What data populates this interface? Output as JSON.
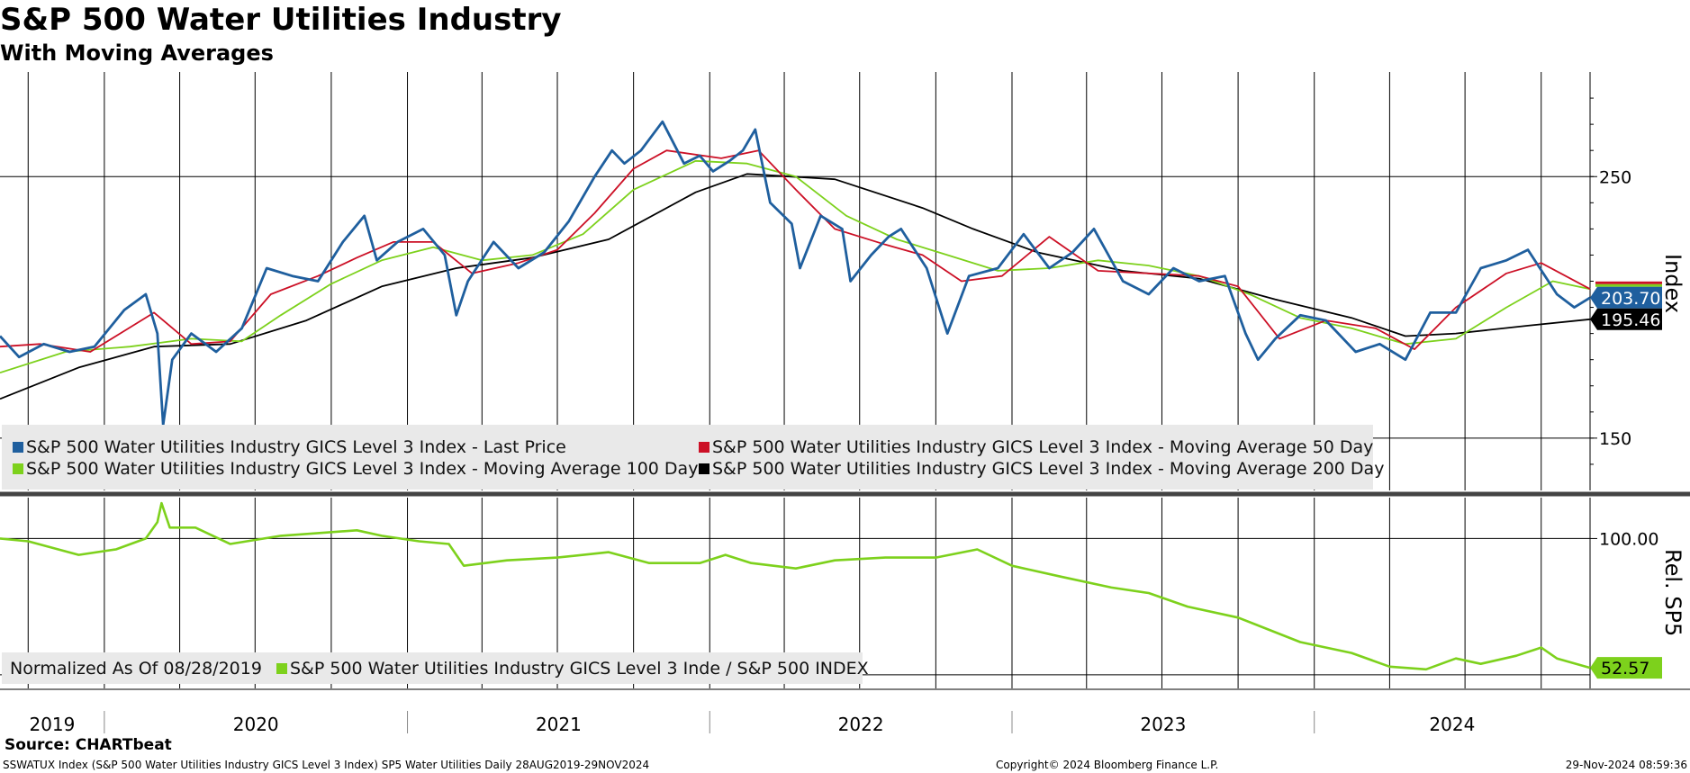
{
  "title": "S&P 500 Water Utilities Industry",
  "subtitle": "With Moving Averages",
  "chart_data": [
    {
      "type": "line",
      "panel": "upper",
      "ylabel": "Index",
      "ylim": [
        130,
        290
      ],
      "yticks": [
        150,
        250
      ],
      "grid": true,
      "legend_position": "bottom-left",
      "last_values": {
        "last_price": "203.70",
        "ma200": "195.46"
      },
      "legend": [
        {
          "key": "last_price",
          "text": "S&P 500 Water Utilities Industry GICS Level 3 Index - Last Price",
          "color": "#1f5f9e"
        },
        {
          "key": "ma50",
          "text": "S&P 500 Water Utilities Industry GICS Level 3 Index - Moving Average 50 Day",
          "color": "#cc1026"
        },
        {
          "key": "ma100",
          "text": "S&P 500 Water Utilities Industry GICS Level 3 Index - Moving Average 100 Day",
          "color": "#7dd11c"
        },
        {
          "key": "ma200",
          "text": "S&P 500 Water Utilities Industry GICS Level 3 Index - Moving Average 200 Day",
          "color": "#000000"
        }
      ],
      "series": [
        {
          "key": "last_price",
          "color": "#1f5f9e",
          "points": [
            [
              "2019-08-28",
              189
            ],
            [
              "2019-09-20",
              181
            ],
            [
              "2019-10-20",
              186
            ],
            [
              "2019-11-20",
              183
            ],
            [
              "2019-12-20",
              185
            ],
            [
              "2020-01-25",
              199
            ],
            [
              "2020-02-20",
              205
            ],
            [
              "2020-03-05",
              190
            ],
            [
              "2020-03-12",
              155
            ],
            [
              "2020-03-23",
              180
            ],
            [
              "2020-04-15",
              190
            ],
            [
              "2020-05-15",
              183
            ],
            [
              "2020-06-15",
              192
            ],
            [
              "2020-07-15",
              215
            ],
            [
              "2020-08-15",
              212
            ],
            [
              "2020-09-15",
              210
            ],
            [
              "2020-10-15",
              225
            ],
            [
              "2020-11-10",
              235
            ],
            [
              "2020-11-25",
              218
            ],
            [
              "2020-12-20",
              225
            ],
            [
              "2021-01-20",
              230
            ],
            [
              "2021-02-15",
              220
            ],
            [
              "2021-03-01",
              197
            ],
            [
              "2021-03-15",
              210
            ],
            [
              "2021-04-15",
              225
            ],
            [
              "2021-05-15",
              215
            ],
            [
              "2021-06-15",
              221
            ],
            [
              "2021-07-15",
              233
            ],
            [
              "2021-08-15",
              250
            ],
            [
              "2021-09-05",
              260
            ],
            [
              "2021-09-20",
              255
            ],
            [
              "2021-10-10",
              260
            ],
            [
              "2021-11-05",
              271
            ],
            [
              "2021-12-01",
              255
            ],
            [
              "2021-12-20",
              258
            ],
            [
              "2022-01-05",
              252
            ],
            [
              "2022-01-25",
              256
            ],
            [
              "2022-02-10",
              260
            ],
            [
              "2022-02-25",
              268
            ],
            [
              "2022-03-15",
              240
            ],
            [
              "2022-04-10",
              232
            ],
            [
              "2022-04-20",
              215
            ],
            [
              "2022-05-15",
              235
            ],
            [
              "2022-06-10",
              230
            ],
            [
              "2022-06-20",
              210
            ],
            [
              "2022-07-15",
              220
            ],
            [
              "2022-08-05",
              227
            ],
            [
              "2022-08-20",
              230
            ],
            [
              "2022-09-20",
              215
            ],
            [
              "2022-10-15",
              190
            ],
            [
              "2022-11-10",
              212
            ],
            [
              "2022-12-15",
              215
            ],
            [
              "2023-01-15",
              228
            ],
            [
              "2023-02-15",
              215
            ],
            [
              "2023-03-15",
              221
            ],
            [
              "2023-04-10",
              230
            ],
            [
              "2023-05-15",
              210
            ],
            [
              "2023-06-15",
              205
            ],
            [
              "2023-07-15",
              215
            ],
            [
              "2023-08-15",
              210
            ],
            [
              "2023-09-15",
              212
            ],
            [
              "2023-10-10",
              190
            ],
            [
              "2023-10-25",
              180
            ],
            [
              "2023-11-15",
              188
            ],
            [
              "2023-12-15",
              197
            ],
            [
              "2024-01-15",
              195
            ],
            [
              "2024-02-20",
              183
            ],
            [
              "2024-03-20",
              186
            ],
            [
              "2024-04-20",
              180
            ],
            [
              "2024-05-20",
              198
            ],
            [
              "2024-06-20",
              198
            ],
            [
              "2024-07-20",
              215
            ],
            [
              "2024-08-20",
              218
            ],
            [
              "2024-09-15",
              222
            ],
            [
              "2024-10-20",
              205
            ],
            [
              "2024-11-10",
              200
            ],
            [
              "2024-11-29",
              203.7
            ]
          ]
        },
        {
          "key": "ma50",
          "color": "#cc1026",
          "points": [
            [
              "2019-08-28",
              185
            ],
            [
              "2019-10-15",
              186
            ],
            [
              "2019-12-15",
              183
            ],
            [
              "2020-01-20",
              190
            ],
            [
              "2020-03-01",
              198
            ],
            [
              "2020-04-15",
              186
            ],
            [
              "2020-06-01",
              187
            ],
            [
              "2020-07-20",
              205
            ],
            [
              "2020-09-15",
              212
            ],
            [
              "2020-11-01",
              219
            ],
            [
              "2020-12-15",
              225
            ],
            [
              "2021-02-01",
              225
            ],
            [
              "2021-03-20",
              213
            ],
            [
              "2021-05-15",
              217
            ],
            [
              "2021-07-01",
              222
            ],
            [
              "2021-08-15",
              236
            ],
            [
              "2021-10-01",
              253
            ],
            [
              "2021-11-10",
              260
            ],
            [
              "2022-01-15",
              257
            ],
            [
              "2022-03-01",
              260
            ],
            [
              "2022-04-15",
              245
            ],
            [
              "2022-06-01",
              230
            ],
            [
              "2022-08-01",
              224
            ],
            [
              "2022-09-15",
              220
            ],
            [
              "2022-11-01",
              210
            ],
            [
              "2022-12-20",
              212
            ],
            [
              "2023-02-15",
              227
            ],
            [
              "2023-04-15",
              214
            ],
            [
              "2023-06-15",
              213
            ],
            [
              "2023-08-15",
              212
            ],
            [
              "2023-10-01",
              208
            ],
            [
              "2023-11-20",
              188
            ],
            [
              "2024-01-15",
              195
            ],
            [
              "2024-03-15",
              192
            ],
            [
              "2024-05-01",
              184
            ],
            [
              "2024-06-20",
              200
            ],
            [
              "2024-08-20",
              213
            ],
            [
              "2024-10-01",
              217
            ],
            [
              "2024-11-29",
              207
            ]
          ]
        },
        {
          "key": "ma100",
          "color": "#7dd11c",
          "points": [
            [
              "2019-08-28",
              175
            ],
            [
              "2019-11-15",
              183
            ],
            [
              "2020-02-01",
              185
            ],
            [
              "2020-04-15",
              188
            ],
            [
              "2020-06-15",
              187
            ],
            [
              "2020-08-01",
              197
            ],
            [
              "2020-10-01",
              209
            ],
            [
              "2020-12-01",
              218
            ],
            [
              "2021-02-01",
              223
            ],
            [
              "2021-04-01",
              218
            ],
            [
              "2021-06-01",
              220
            ],
            [
              "2021-08-01",
              228
            ],
            [
              "2021-10-01",
              245
            ],
            [
              "2021-12-15",
              256
            ],
            [
              "2022-02-15",
              255
            ],
            [
              "2022-04-15",
              250
            ],
            [
              "2022-06-15",
              235
            ],
            [
              "2022-08-15",
              226
            ],
            [
              "2022-10-15",
              220
            ],
            [
              "2022-12-15",
              214
            ],
            [
              "2023-02-15",
              215
            ],
            [
              "2023-04-15",
              218
            ],
            [
              "2023-06-15",
              216
            ],
            [
              "2023-08-15",
              212
            ],
            [
              "2023-10-15",
              205
            ],
            [
              "2023-12-15",
              196
            ],
            [
              "2024-02-15",
              192
            ],
            [
              "2024-04-20",
              186
            ],
            [
              "2024-06-20",
              188
            ],
            [
              "2024-08-20",
              200
            ],
            [
              "2024-10-15",
              210
            ],
            [
              "2024-11-29",
              207
            ]
          ]
        },
        {
          "key": "ma200",
          "color": "#000000",
          "points": [
            [
              "2019-08-28",
              165
            ],
            [
              "2019-12-01",
              177
            ],
            [
              "2020-03-01",
              185
            ],
            [
              "2020-06-01",
              186
            ],
            [
              "2020-09-01",
              195
            ],
            [
              "2020-12-01",
              208
            ],
            [
              "2021-03-01",
              215
            ],
            [
              "2021-06-01",
              219
            ],
            [
              "2021-09-01",
              226
            ],
            [
              "2021-12-15",
              244
            ],
            [
              "2022-02-15",
              251
            ],
            [
              "2022-06-01",
              249
            ],
            [
              "2022-09-15",
              238
            ],
            [
              "2022-11-15",
              230
            ],
            [
              "2023-02-01",
              221
            ],
            [
              "2023-05-15",
              214
            ],
            [
              "2023-08-15",
              211
            ],
            [
              "2023-11-15",
              203
            ],
            [
              "2024-02-15",
              196
            ],
            [
              "2024-04-20",
              189
            ],
            [
              "2024-06-20",
              190
            ],
            [
              "2024-09-15",
              193
            ],
            [
              "2024-11-29",
              195.46
            ]
          ]
        }
      ]
    },
    {
      "type": "line",
      "panel": "lower",
      "ylabel": "Rel. SP5",
      "ylim": [
        45,
        115
      ],
      "yticks": [
        100
      ],
      "ytick_labels": [
        "100.00"
      ],
      "normalized_label": "Normalized As Of 08/28/2019",
      "last_value": "52.57",
      "series": [
        {
          "key": "relative",
          "name": "S&P 500 Water Utilities Industry GICS Level 3 Inde / S&P 500 INDEX",
          "color": "#7dd11c",
          "points": [
            [
              "2019-08-28",
              100
            ],
            [
              "2019-10-01",
              99
            ],
            [
              "2019-12-01",
              94
            ],
            [
              "2020-01-15",
              96
            ],
            [
              "2020-02-20",
              100
            ],
            [
              "2020-03-05",
              106
            ],
            [
              "2020-03-10",
              113
            ],
            [
              "2020-03-20",
              104
            ],
            [
              "2020-04-20",
              104
            ],
            [
              "2020-06-01",
              98
            ],
            [
              "2020-08-01",
              101
            ],
            [
              "2020-09-15",
              102
            ],
            [
              "2020-11-01",
              103
            ],
            [
              "2020-12-01",
              101
            ],
            [
              "2021-01-15",
              99
            ],
            [
              "2021-02-20",
              98
            ],
            [
              "2021-03-10",
              90
            ],
            [
              "2021-05-01",
              92
            ],
            [
              "2021-07-01",
              93
            ],
            [
              "2021-09-01",
              95
            ],
            [
              "2021-10-20",
              91
            ],
            [
              "2021-12-20",
              91
            ],
            [
              "2022-01-20",
              94
            ],
            [
              "2022-02-20",
              91
            ],
            [
              "2022-04-15",
              89
            ],
            [
              "2022-06-01",
              92
            ],
            [
              "2022-08-01",
              93
            ],
            [
              "2022-10-01",
              93
            ],
            [
              "2022-11-20",
              96
            ],
            [
              "2023-01-01",
              90
            ],
            [
              "2023-03-01",
              86
            ],
            [
              "2023-05-01",
              82
            ],
            [
              "2023-06-15",
              80
            ],
            [
              "2023-08-01",
              75
            ],
            [
              "2023-10-01",
              71
            ],
            [
              "2023-12-15",
              62
            ],
            [
              "2024-02-15",
              58
            ],
            [
              "2024-04-01",
              53
            ],
            [
              "2024-05-15",
              52
            ],
            [
              "2024-06-20",
              56
            ],
            [
              "2024-07-20",
              54
            ],
            [
              "2024-09-01",
              57
            ],
            [
              "2024-10-01",
              60
            ],
            [
              "2024-10-20",
              56
            ],
            [
              "2024-11-29",
              52.57
            ]
          ]
        }
      ]
    },
    {
      "type": "axis",
      "x_labels": [
        "2019",
        "2020",
        "2021",
        "2022",
        "2023",
        "2024"
      ],
      "x_range": [
        "2019-08-28",
        "2024-11-29"
      ]
    }
  ],
  "source_label": "Source: CHARTbeat",
  "footer": {
    "left": "SSWATUX Index (S&P 500 Water Utilities Industry GICS Level 3 Index) SP5 Water Utilities  Daily 28AUG2019-29NOV2024",
    "center": "Copyright© 2024 Bloomberg Finance L.P.",
    "right": "29-Nov-2024 08:59:36"
  }
}
